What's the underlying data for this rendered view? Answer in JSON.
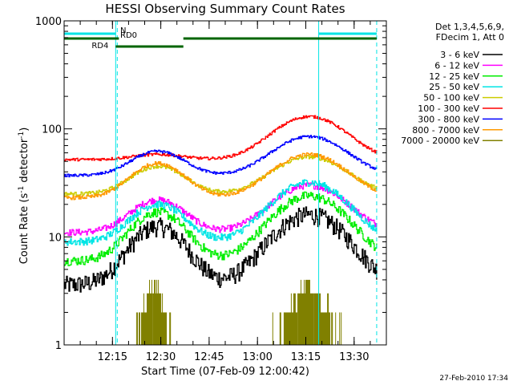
{
  "chart_data": {
    "type": "line",
    "title": "HESSI Observing Summary Count Rates",
    "xlabel": "Start Time (07-Feb-09 12:00:42)",
    "ylabel_main": "Count Rate (s",
    "ylabel_sup1": "-1",
    "ylabel_mid": " detector",
    "ylabel_sup2": "-1",
    "ylabel_end": ")",
    "yscale": "log",
    "ylim": [
      1,
      1000
    ],
    "xlim_minutes": [
      0,
      100
    ],
    "x_ticks": [
      {
        "label": "12:15",
        "minute": 15
      },
      {
        "label": "12:30",
        "minute": 30
      },
      {
        "label": "12:45",
        "minute": 45
      },
      {
        "label": "13:00",
        "minute": 60
      },
      {
        "label": "13:15",
        "minute": 75
      },
      {
        "label": "13:30",
        "minute": 90
      }
    ],
    "y_ticks": [
      {
        "label": "1",
        "value": 1
      },
      {
        "label": "10",
        "value": 10
      },
      {
        "label": "100",
        "value": 100
      },
      {
        "label": "1000",
        "value": 1000
      }
    ],
    "legend_header": [
      "Det 1,3,4,5,6,9,",
      "FDecim 1, Att 0"
    ],
    "series": [
      {
        "name": "3 - 6 keV",
        "color": "#000000",
        "base": 3.6,
        "peaks": [
          12.5,
          16
        ],
        "noise": 0.2
      },
      {
        "name": "6 - 12 keV",
        "color": "#ff00ff",
        "base": 11,
        "peaks": [
          22,
          30
        ],
        "noise": 0.07
      },
      {
        "name": "12 - 25 keV",
        "color": "#00ee00",
        "base": 6,
        "peaks": [
          17,
          24
        ],
        "noise": 0.1
      },
      {
        "name": "25 - 50 keV",
        "color": "#00e5e5",
        "base": 9,
        "peaks": [
          20,
          32
        ],
        "noise": 0.08
      },
      {
        "name": "50 - 100 keV",
        "color": "#cccc00",
        "base": 25,
        "peaks": [
          45,
          55
        ],
        "noise": 0.04
      },
      {
        "name": "100 - 300 keV",
        "color": "#ff0000",
        "base": 52,
        "peaks": [
          58,
          130
        ],
        "noise": 0.03
      },
      {
        "name": "300 - 800 keV",
        "color": "#0000ff",
        "base": 37,
        "peaks": [
          62,
          85
        ],
        "noise": 0.03
      },
      {
        "name": "800 - 7000 keV",
        "color": "#ff9900",
        "base": 23,
        "peaks": [
          48,
          58
        ],
        "noise": 0.04
      },
      {
        "name": "7000 - 20000 keV",
        "color": "#808000",
        "base": null,
        "peaks": [
          3,
          3
        ],
        "noise": 0
      }
    ],
    "flags": [
      {
        "label": "N",
        "color": "#00e5e5",
        "segments": [
          [
            0,
            16
          ],
          [
            79,
            97
          ]
        ]
      },
      {
        "label": "RD0",
        "color": "#006400",
        "segments": [
          [
            0,
            17
          ],
          [
            37,
            97
          ]
        ]
      },
      {
        "label": "RD4",
        "color": "#006400",
        "segments": [
          [
            16,
            37
          ]
        ]
      }
    ],
    "night_boundaries": [
      16,
      79
    ],
    "day_boundaries_dashed": [
      16.5,
      97
    ],
    "grid": false
  },
  "footer": {
    "timestamp": "27-Feb-2010 17:34"
  }
}
